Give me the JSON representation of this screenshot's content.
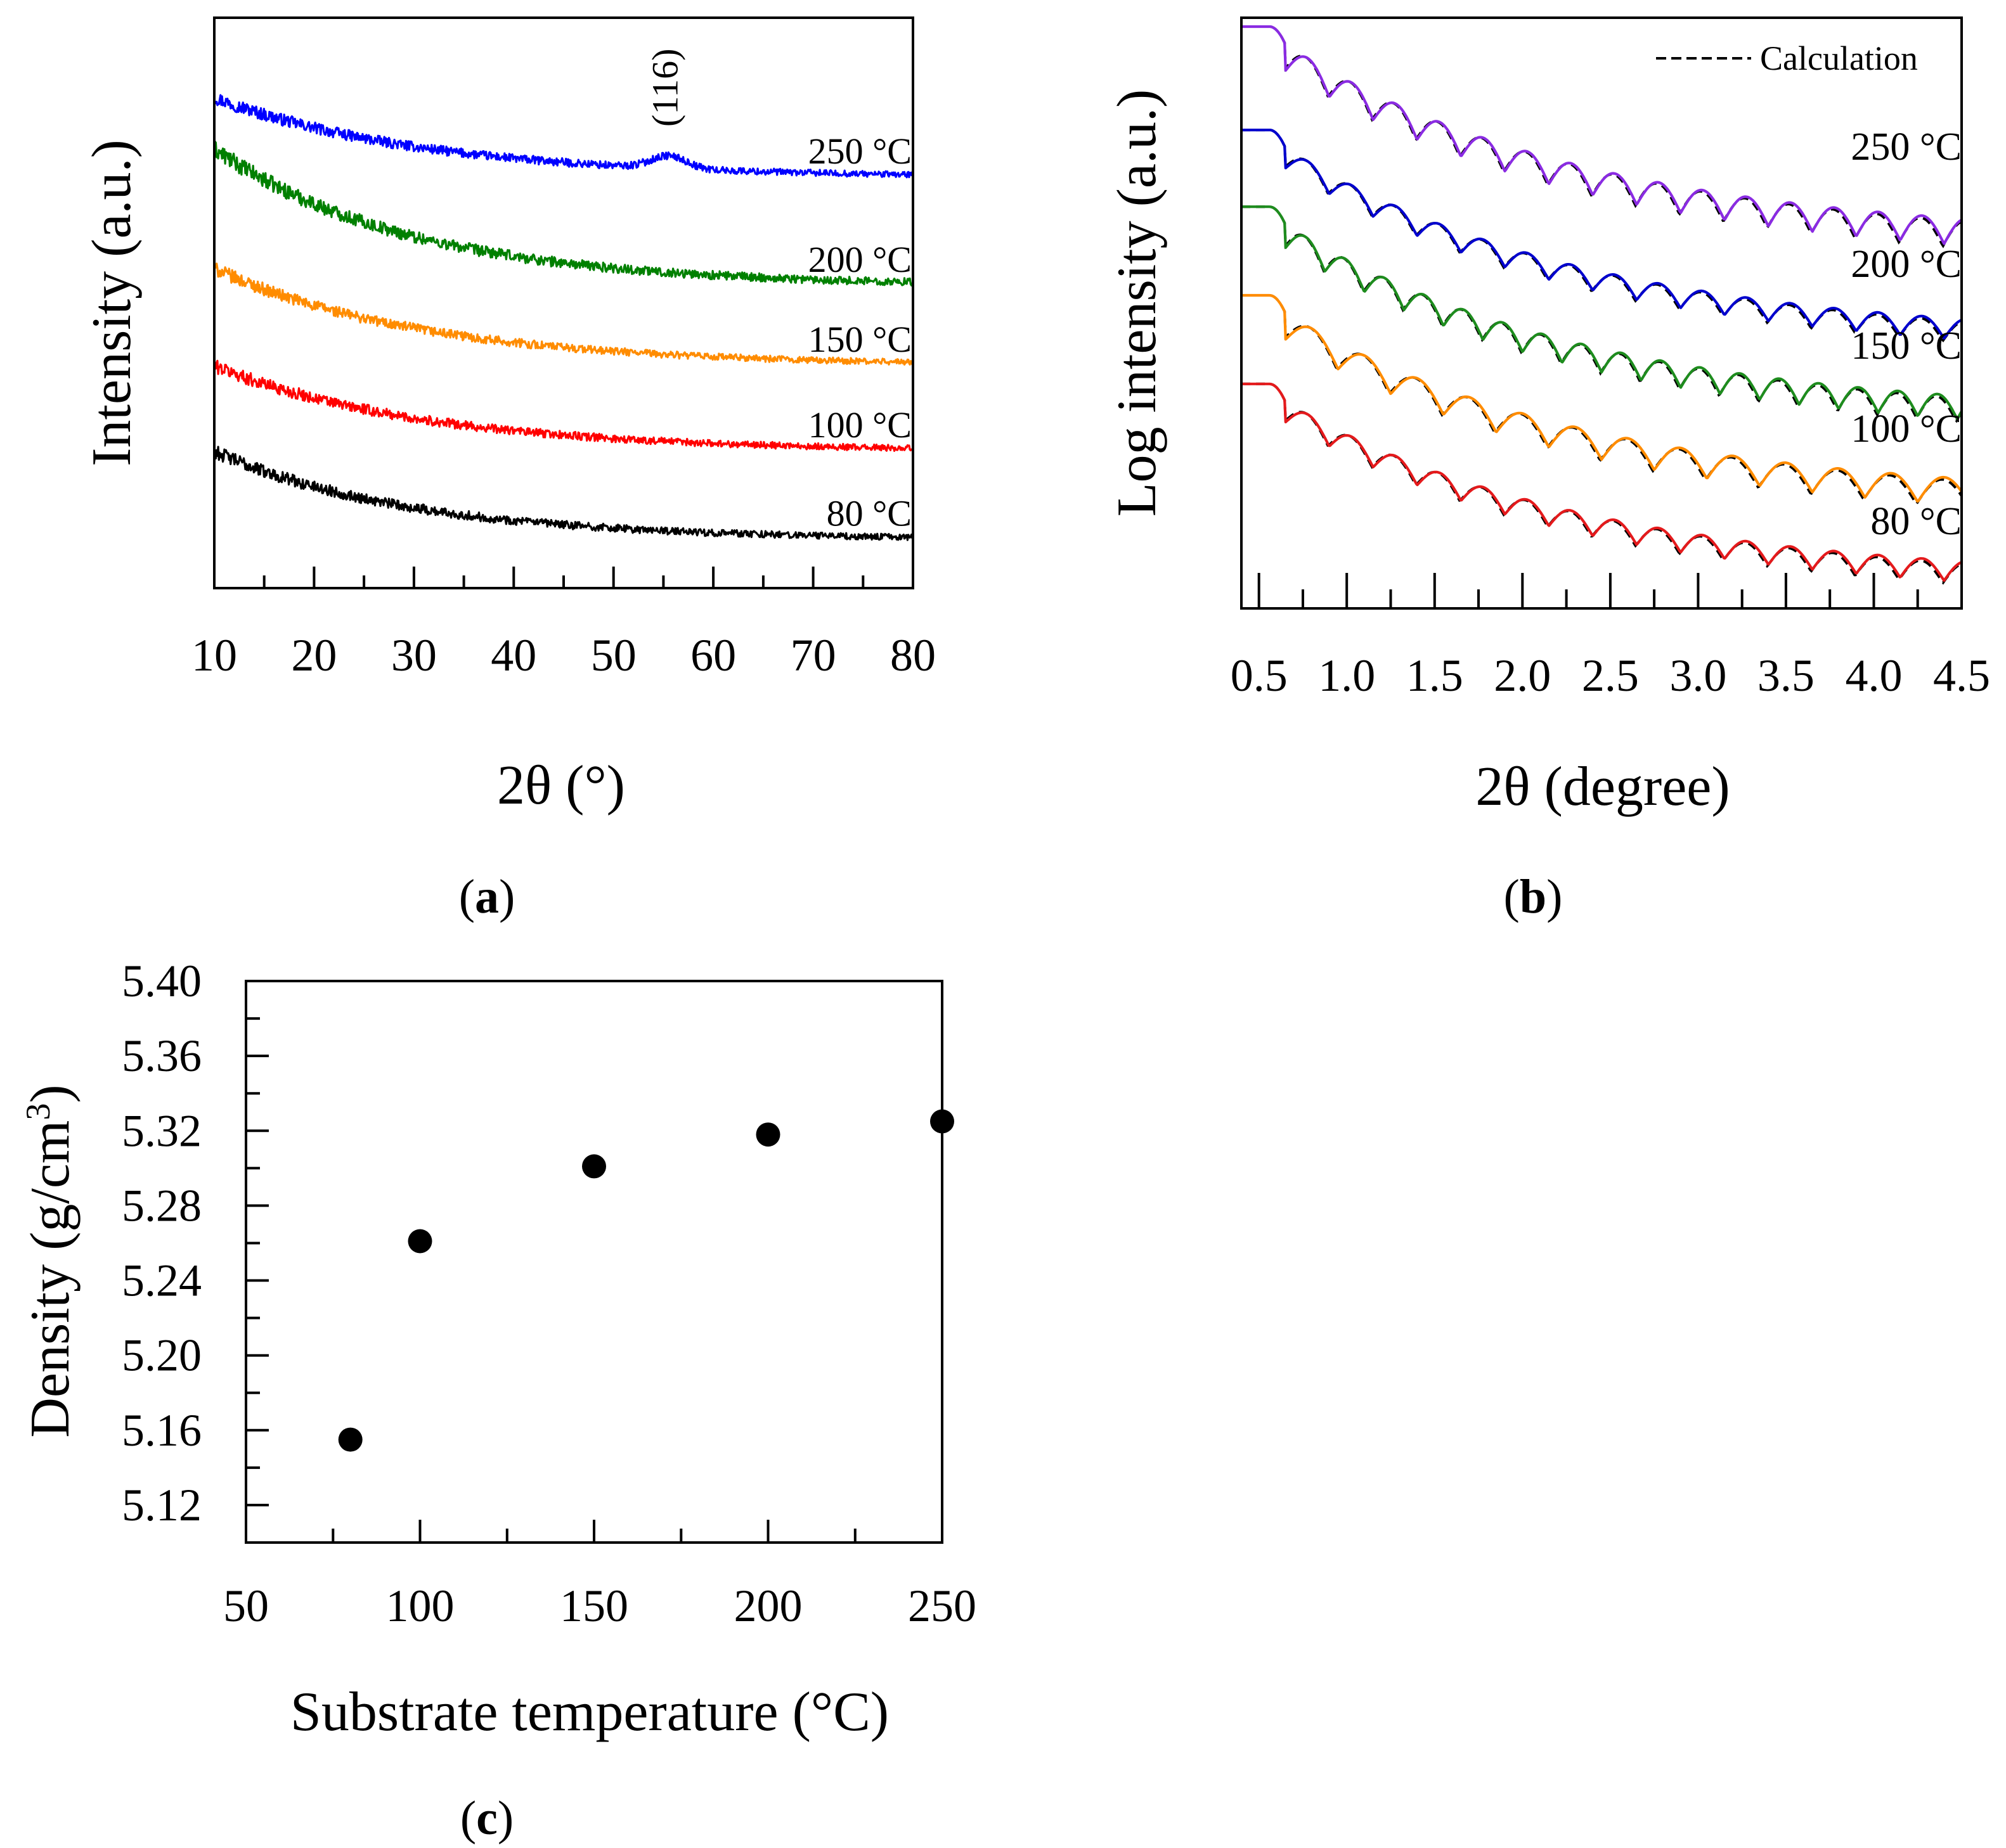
{
  "chart_data": [
    {
      "id": "a",
      "type": "line",
      "panel_label": "a",
      "xlabel": "2θ (°)",
      "ylabel": "Intensity (a.u.)",
      "xlim": [
        10,
        80
      ],
      "xticks": [
        10,
        20,
        30,
        40,
        50,
        60,
        70,
        80
      ],
      "xtick_labels": [
        "10",
        "20",
        "30",
        "40",
        "50",
        "60",
        "70",
        "80"
      ],
      "ylim": [
        0,
        1
      ],
      "yticks_visible": false,
      "annotation": {
        "text": "(116)",
        "x": 55,
        "orientation": "vertical"
      },
      "series": [
        {
          "name": "250 °C",
          "label": "250 °C",
          "color": "#0000ff",
          "start": 0.86,
          "end": 0.72,
          "decay": 0.3,
          "noise": 0.012,
          "peak": {
            "center": 55.5,
            "width": 2.5,
            "height": 0.022
          }
        },
        {
          "name": "200 °C",
          "label": "200 °C",
          "color": "#008000",
          "start": 0.77,
          "end": 0.53,
          "decay": 0.28,
          "noise": 0.015
        },
        {
          "name": "150 °C",
          "label": "150 °C",
          "color": "#ff8c00",
          "start": 0.56,
          "end": 0.39,
          "decay": 0.3,
          "noise": 0.012
        },
        {
          "name": "100 °C",
          "label": "100 °C",
          "color": "#ff0000",
          "start": 0.39,
          "end": 0.24,
          "decay": 0.3,
          "noise": 0.012
        },
        {
          "name": "80 °C",
          "label": "80 °C",
          "color": "#000000",
          "start": 0.24,
          "end": 0.085,
          "decay": 0.28,
          "noise": 0.012
        }
      ]
    },
    {
      "id": "b",
      "type": "line",
      "panel_label": "b",
      "xlabel": "2θ (degree)",
      "ylabel": "Log intensity (a.u.)",
      "xlim": [
        0.4,
        4.5
      ],
      "xticks": [
        0.5,
        1.0,
        1.5,
        2.0,
        2.5,
        3.0,
        3.5,
        4.0,
        4.5
      ],
      "xtick_labels": [
        "0.5",
        "1.0",
        "1.5",
        "2.0",
        "2.5",
        "3.0",
        "3.5",
        "4.0",
        "4.5"
      ],
      "ylim": [
        0,
        1
      ],
      "yticks_visible": false,
      "legend": {
        "label": "Calculation",
        "style": "dashed",
        "color": "#000000",
        "position": "top-right"
      },
      "critical_angle": 0.65,
      "series": [
        {
          "name": "250 °C",
          "label": "250 °C",
          "color": "#8a2be2",
          "plateau": 0.985,
          "end": 0.66,
          "fringe_period": 0.25,
          "fringe_amp": 0.045
        },
        {
          "name": "200 °C",
          "label": "200 °C",
          "color": "#0000cd",
          "plateau": 0.81,
          "end": 0.49,
          "fringe_period": 0.25,
          "fringe_amp": 0.035
        },
        {
          "name": "150 °C",
          "label": "150 °C",
          "color": "#1e8c1e",
          "plateau": 0.68,
          "end": 0.36,
          "fringe_period": 0.225,
          "fringe_amp": 0.04
        },
        {
          "name": "100 °C",
          "label": "100 °C",
          "color": "#ff8c00",
          "plateau": 0.53,
          "end": 0.22,
          "fringe_period": 0.3,
          "fringe_amp": 0.045
        },
        {
          "name": "80 °C",
          "label": "80 °C",
          "color": "#e41a1c",
          "plateau": 0.38,
          "end": 0.08,
          "fringe_period": 0.25,
          "fringe_amp": 0.035
        }
      ]
    },
    {
      "id": "c",
      "type": "scatter",
      "panel_label": "c",
      "xlabel": "Substrate temperature (°C)",
      "ylabel_main": "Density  (g/cm",
      "ylabel_sup": "3",
      "ylabel_close": ")",
      "xlim": [
        50,
        250
      ],
      "xticks": [
        50,
        100,
        150,
        200,
        250
      ],
      "xtick_labels": [
        "50",
        "100",
        "150",
        "200",
        "250"
      ],
      "ylim": [
        5.1,
        5.4
      ],
      "yticks": [
        5.12,
        5.16,
        5.2,
        5.24,
        5.28,
        5.32,
        5.36,
        5.4
      ],
      "ytick_labels": [
        "5.12",
        "5.16",
        "5.20",
        "5.24",
        "5.28",
        "5.32",
        "5.36",
        "5.40"
      ],
      "x": [
        80,
        100,
        150,
        200,
        250
      ],
      "y": [
        5.155,
        5.261,
        5.301,
        5.318,
        5.325
      ],
      "marker_color": "#000000"
    }
  ]
}
